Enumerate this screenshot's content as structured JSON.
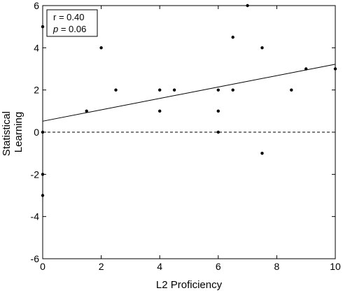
{
  "chart_data": {
    "type": "scatter",
    "xlabel": "L2 Proficiency",
    "ylabel_lines": [
      "Statistical",
      "Learning"
    ],
    "xlim": [
      0,
      10
    ],
    "ylim": [
      -6,
      6
    ],
    "xticks": [
      0,
      2,
      4,
      6,
      8,
      10
    ],
    "yticks": [
      -6,
      -4,
      -2,
      0,
      2,
      4,
      6
    ],
    "xtick_labels": [
      "0",
      "2",
      "4",
      "6",
      "8",
      "10"
    ],
    "ytick_labels": [
      "-6",
      "-4",
      "-2",
      "0",
      "2",
      "4",
      "6"
    ],
    "grid": false,
    "points": [
      {
        "x": 0,
        "y": 5
      },
      {
        "x": 0,
        "y": 0
      },
      {
        "x": 0,
        "y": -2
      },
      {
        "x": 0,
        "y": -3
      },
      {
        "x": 1.5,
        "y": 1
      },
      {
        "x": 2,
        "y": 4
      },
      {
        "x": 2.5,
        "y": 2
      },
      {
        "x": 4,
        "y": 2
      },
      {
        "x": 4,
        "y": 1
      },
      {
        "x": 4.5,
        "y": 2
      },
      {
        "x": 6,
        "y": 2
      },
      {
        "x": 6,
        "y": 1
      },
      {
        "x": 6,
        "y": 0
      },
      {
        "x": 6.5,
        "y": 4.5
      },
      {
        "x": 6.5,
        "y": 2
      },
      {
        "x": 7,
        "y": 6
      },
      {
        "x": 7.5,
        "y": 4
      },
      {
        "x": 7.5,
        "y": -1
      },
      {
        "x": 8.5,
        "y": 2
      },
      {
        "x": 9,
        "y": 3
      },
      {
        "x": 10,
        "y": 3
      }
    ],
    "fit_line": {
      "x": [
        0,
        10
      ],
      "y": [
        0.52,
        3.22
      ]
    },
    "reference_line": {
      "y": 0,
      "style": "dashed"
    },
    "annotation": {
      "r_text": "r = 0.40",
      "p_symbol": "p",
      "p_value": " = 0.06",
      "placement": "top-left"
    }
  }
}
